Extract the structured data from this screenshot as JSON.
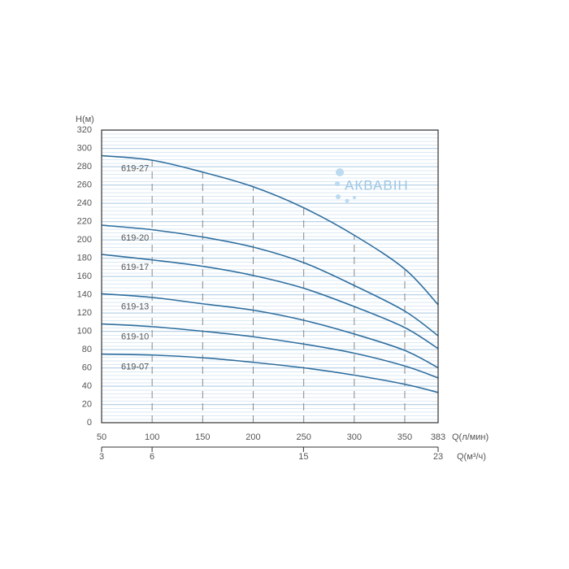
{
  "chart_data": {
    "type": "line",
    "watermark": "АКВАВІН",
    "y_label": "H(м)",
    "x_label": "Q(л/мин)",
    "x2_label": "Q(м³/ч)",
    "x": [
      50,
      100,
      150,
      200,
      250,
      300,
      350,
      383
    ],
    "xlim": [
      50,
      383
    ],
    "xticks": [
      50,
      100,
      150,
      200,
      250,
      300,
      350,
      383
    ],
    "x2lim": [
      3,
      23
    ],
    "x2ticks": [
      3,
      6,
      15,
      23
    ],
    "ylim": [
      0,
      320
    ],
    "yticks": [
      0,
      20,
      40,
      60,
      80,
      100,
      120,
      140,
      160,
      180,
      200,
      220,
      240,
      260,
      280,
      300,
      320
    ],
    "grid": true,
    "series": [
      {
        "name": "619-27",
        "color": "#2f6e9e",
        "values": [
          292,
          287,
          274,
          258,
          235,
          205,
          168,
          129
        ]
      },
      {
        "name": "619-20",
        "color": "#2f6e9e",
        "values": [
          216,
          211,
          203,
          192,
          175,
          150,
          122,
          95
        ]
      },
      {
        "name": "619-17",
        "color": "#2f6e9e",
        "values": [
          184,
          178,
          171,
          161,
          147,
          127,
          104,
          81
        ]
      },
      {
        "name": "619-13",
        "color": "#2f6e9e",
        "values": [
          141,
          137,
          130,
          123,
          112,
          97,
          79,
          60
        ]
      },
      {
        "name": "619-10",
        "color": "#2f6e9e",
        "values": [
          108,
          105,
          100,
          94,
          86,
          76,
          62,
          49
        ]
      },
      {
        "name": "619-07",
        "color": "#2f6e9e",
        "values": [
          75,
          74,
          71,
          66,
          60,
          52,
          42,
          33
        ]
      }
    ]
  }
}
